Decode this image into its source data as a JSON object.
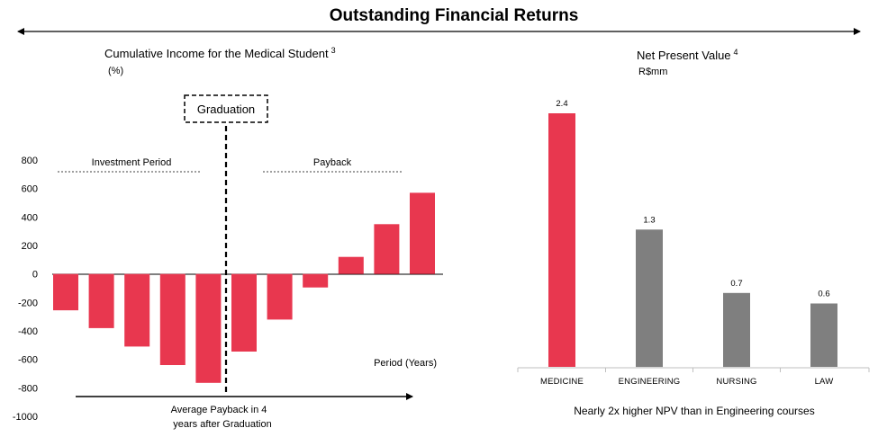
{
  "header": {
    "title": "Outstanding Financial Returns"
  },
  "colors": {
    "accent": "#e8374f",
    "neutral": "#7f7f7f",
    "axis": "#000000",
    "divider": "#bfbfbf"
  },
  "chart_data": [
    {
      "type": "bar",
      "title": "Cumulative Income for the Medical Student",
      "title_sup": "3",
      "unit": "(%)",
      "xlabel": "Period (Years)",
      "ylabel": "",
      "ylim": [
        -1000,
        800
      ],
      "yticks": [
        "800",
        "600",
        "400",
        "200",
        "0",
        "-200",
        "-400",
        "-600",
        "-800",
        "-1000"
      ],
      "values": [
        -255,
        -380,
        -510,
        -640,
        -765,
        -545,
        -320,
        -95,
        120,
        350,
        570
      ],
      "graduation_after_index": 4,
      "annotations": {
        "graduation": "Graduation",
        "investment": "Investment Period",
        "payback": "Payback",
        "payback_note_1": "Average Payback in 4",
        "payback_note_2": "years after Graduation"
      },
      "grid": false
    },
    {
      "type": "bar",
      "title": "Net Present Value",
      "title_sup": "4",
      "unit": "R$mm",
      "categories": [
        "MEDICINE",
        "ENGINEERING",
        "NURSING",
        "LAW"
      ],
      "values": [
        2.4,
        1.3,
        0.7,
        0.6
      ],
      "labels": [
        "2.4",
        "1.3",
        "0.7",
        "0.6"
      ],
      "highlight_index": 0,
      "ylim": [
        0,
        2.5
      ],
      "footnote": "Nearly 2x higher NPV than in Engineering courses",
      "grid": false
    }
  ]
}
